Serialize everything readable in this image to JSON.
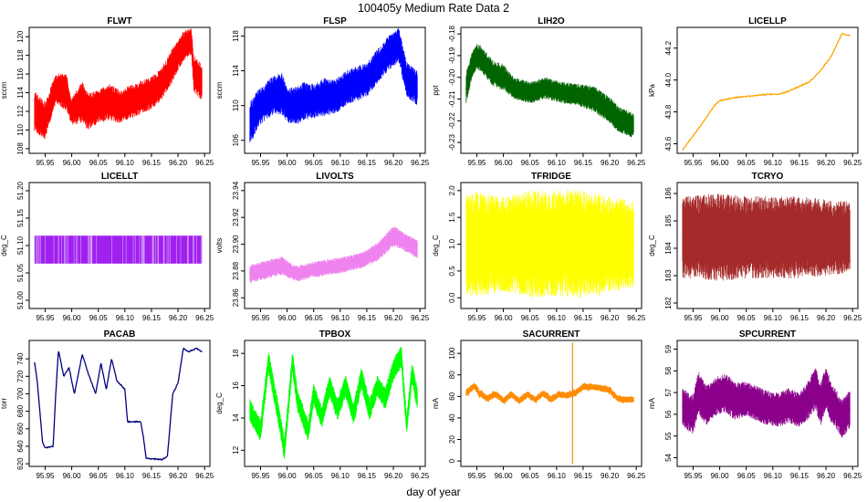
{
  "figure": {
    "title": "100405y   Medium Rate Data 2",
    "xlabel": "day of year"
  },
  "chart_data": [
    {
      "type": "line",
      "title": "FLWT",
      "ylabel": "sccm",
      "color": "#ff0000",
      "style": "noisy",
      "noise": 0.12,
      "xlim": [
        95.92,
        96.26
      ],
      "ylim": [
        107.5,
        121
      ],
      "xticks": [
        95.95,
        96.0,
        96.05,
        96.1,
        96.15,
        96.2,
        96.25
      ],
      "yticks": [
        108,
        110,
        112,
        114,
        116,
        118,
        120
      ],
      "ydec": 0,
      "x": [
        95.93,
        95.95,
        95.97,
        95.99,
        96.0,
        96.02,
        96.03,
        96.05,
        96.07,
        96.09,
        96.11,
        96.13,
        96.15,
        96.17,
        96.19,
        96.21,
        96.225,
        96.23,
        96.245
      ],
      "y": [
        112,
        111,
        114.5,
        114,
        112,
        113,
        112,
        112.5,
        113,
        112.5,
        113,
        113.5,
        114,
        115,
        117,
        119,
        119.5,
        116,
        115
      ],
      "amp": [
        2.2,
        2.0,
        1.6,
        2.0,
        1.5,
        2.2,
        2.0,
        1.8,
        2.0,
        1.8,
        1.8,
        1.8,
        1.8,
        1.8,
        1.8,
        1.6,
        1.4,
        2.0,
        2.0
      ]
    },
    {
      "type": "line",
      "title": "FLSP",
      "ylabel": "sccm",
      "color": "#0000ff",
      "style": "noisy",
      "noise": 0.15,
      "xlim": [
        95.92,
        96.26
      ],
      "ylim": [
        104.5,
        119
      ],
      "xticks": [
        95.95,
        96.0,
        96.05,
        96.1,
        96.15,
        96.2,
        96.25
      ],
      "yticks": [
        106,
        110,
        114,
        118
      ],
      "ydec": 0,
      "x": [
        95.93,
        95.95,
        95.97,
        95.99,
        96.0,
        96.02,
        96.03,
        96.05,
        96.07,
        96.09,
        96.11,
        96.13,
        96.15,
        96.17,
        96.19,
        96.21,
        96.225,
        96.245
      ],
      "y": [
        108,
        110,
        111,
        111.5,
        110,
        110,
        110.5,
        110.5,
        111,
        111,
        112,
        112.5,
        113,
        114.5,
        116,
        117,
        113,
        112
      ],
      "amp": [
        2.5,
        2.2,
        2.2,
        2.5,
        2.0,
        2.2,
        2.2,
        2.0,
        2.2,
        2.0,
        2.0,
        2.0,
        2.0,
        2.0,
        2.0,
        2.0,
        2.0,
        2.0
      ]
    },
    {
      "type": "line",
      "title": "LIH2O",
      "ylabel": "ppt",
      "color": "#006400",
      "style": "noisy",
      "noise": 0.2,
      "xlim": [
        95.92,
        96.26
      ],
      "ylim": [
        -0.235,
        -0.177
      ],
      "xticks": [
        95.95,
        96.0,
        96.05,
        96.1,
        96.15,
        96.2,
        96.25
      ],
      "yticks": [
        -0.23,
        -0.22,
        -0.21,
        -0.2,
        -0.19,
        -0.18
      ],
      "ydec": 2,
      "x": [
        95.93,
        95.94,
        95.95,
        95.96,
        95.98,
        96.0,
        96.02,
        96.05,
        96.08,
        96.11,
        96.14,
        96.17,
        96.2,
        96.22,
        96.245
      ],
      "y": [
        -0.205,
        -0.195,
        -0.19,
        -0.192,
        -0.198,
        -0.2,
        -0.205,
        -0.207,
        -0.205,
        -0.207,
        -0.208,
        -0.21,
        -0.215,
        -0.22,
        -0.222
      ],
      "amp": [
        0.008,
        0.006,
        0.006,
        0.006,
        0.006,
        0.006,
        0.005,
        0.005,
        0.005,
        0.005,
        0.005,
        0.006,
        0.006,
        0.006,
        0.006
      ]
    },
    {
      "type": "line",
      "title": "LICELLP",
      "ylabel": "kPa",
      "color": "#ffa500",
      "style": "smooth",
      "xlim": [
        95.92,
        96.26
      ],
      "ylim": [
        43.54,
        44.33
      ],
      "xticks": [
        95.95,
        96.0,
        96.05,
        96.1,
        96.15,
        96.2,
        96.25
      ],
      "yticks": [
        43.6,
        43.8,
        44.0,
        44.2
      ],
      "ydec": 1,
      "x": [
        95.93,
        95.95,
        95.97,
        95.99,
        96.0,
        96.03,
        96.06,
        96.09,
        96.11,
        96.13,
        96.15,
        96.17,
        96.19,
        96.21,
        96.22,
        96.23,
        96.245
      ],
      "y": [
        43.56,
        43.65,
        43.74,
        43.84,
        43.87,
        43.89,
        43.9,
        43.91,
        43.91,
        43.93,
        43.96,
        43.99,
        44.06,
        44.15,
        44.22,
        44.29,
        44.28
      ]
    },
    {
      "type": "line",
      "title": "LICELLT",
      "ylabel": "deg_C",
      "color": "#a020f0",
      "style": "band",
      "xlim": [
        95.92,
        96.26
      ],
      "ylim": [
        50.985,
        51.215
      ],
      "xticks": [
        95.95,
        96.0,
        96.05,
        96.1,
        96.15,
        96.2,
        96.25
      ],
      "yticks": [
        51.0,
        51.05,
        51.1,
        51.15,
        51.2
      ],
      "ydec": 2,
      "x": [
        95.93,
        96.245
      ],
      "y": [
        51.075,
        51.075
      ],
      "band": [
        51.067,
        51.118
      ]
    },
    {
      "type": "line",
      "title": "LIVOLTS",
      "ylabel": "volts",
      "color": "#ee82ee",
      "style": "noisy",
      "noise": 0.25,
      "xlim": [
        95.92,
        96.26
      ],
      "ylim": [
        23.852,
        23.946
      ],
      "xticks": [
        95.95,
        96.0,
        96.05,
        96.1,
        96.15,
        96.2,
        96.25
      ],
      "yticks": [
        23.86,
        23.88,
        23.9,
        23.92,
        23.94
      ],
      "ydec": 2,
      "x": [
        95.93,
        95.96,
        95.99,
        96.01,
        96.02,
        96.05,
        96.08,
        96.11,
        96.14,
        96.17,
        96.2,
        96.22,
        96.245
      ],
      "y": [
        23.878,
        23.881,
        23.884,
        23.879,
        23.878,
        23.881,
        23.883,
        23.885,
        23.888,
        23.894,
        23.906,
        23.902,
        23.896
      ],
      "amp": [
        0.007,
        0.007,
        0.007,
        0.006,
        0.006,
        0.006,
        0.006,
        0.006,
        0.006,
        0.007,
        0.008,
        0.007,
        0.007
      ]
    },
    {
      "type": "line",
      "title": "TFRIDGE",
      "ylabel": "deg_C",
      "color": "#ffff00",
      "style": "noisy",
      "noise": 0.3,
      "xlim": [
        95.92,
        96.26
      ],
      "ylim": [
        -0.2,
        2.15
      ],
      "xticks": [
        95.95,
        96.0,
        96.05,
        96.1,
        96.15,
        96.2,
        96.25
      ],
      "yticks": [
        0.0,
        0.5,
        1.0,
        1.5,
        2.0
      ],
      "ydec": 1,
      "x": [
        95.93,
        96.0,
        96.05,
        96.1,
        96.15,
        96.2,
        96.245
      ],
      "y": [
        1.0,
        1.0,
        1.0,
        1.0,
        1.0,
        1.0,
        1.0
      ],
      "amp": [
        1.0,
        0.9,
        1.0,
        1.0,
        1.0,
        0.9,
        0.8
      ]
    },
    {
      "type": "line",
      "title": "TCRYO",
      "ylabel": "deg_C",
      "color": "#a52a2a",
      "style": "noisy",
      "noise": 0.3,
      "xlim": [
        95.92,
        96.26
      ],
      "ylim": [
        181.8,
        186.4
      ],
      "xticks": [
        95.95,
        96.0,
        96.05,
        96.1,
        96.15,
        96.2,
        96.25
      ],
      "yticks": [
        182,
        183,
        184,
        185,
        186
      ],
      "ydec": 0,
      "x": [
        95.93,
        96.0,
        96.05,
        96.1,
        96.15,
        96.2,
        96.245
      ],
      "y": [
        184.4,
        184.4,
        184.4,
        184.4,
        184.4,
        184.4,
        184.4
      ],
      "amp": [
        1.5,
        1.6,
        1.5,
        1.5,
        1.5,
        1.4,
        1.3
      ]
    },
    {
      "type": "line",
      "title": "PACAB",
      "ylabel": "torr",
      "color": "#000080",
      "style": "smooth",
      "xlim": [
        95.92,
        96.26
      ],
      "ylim": [
        617,
        761
      ],
      "xticks": [
        95.95,
        96.0,
        96.05,
        96.1,
        96.15,
        96.2,
        96.25
      ],
      "yticks": [
        620,
        640,
        660,
        680,
        700,
        720,
        740
      ],
      "ydec": 0,
      "x": [
        95.93,
        95.935,
        95.94,
        95.945,
        95.95,
        95.965,
        95.97,
        95.975,
        95.985,
        95.995,
        96.005,
        96.02,
        96.03,
        96.045,
        96.055,
        96.065,
        96.075,
        96.085,
        96.1,
        96.105,
        96.13,
        96.135,
        96.14,
        96.17,
        96.18,
        96.19,
        96.2,
        96.21,
        96.22,
        96.235,
        96.245
      ],
      "y": [
        736,
        715,
        680,
        645,
        638,
        640,
        700,
        750,
        720,
        730,
        700,
        745,
        725,
        700,
        735,
        705,
        740,
        715,
        705,
        668,
        668,
        650,
        626,
        625,
        628,
        700,
        712,
        752,
        748,
        752,
        748
      ]
    },
    {
      "type": "line",
      "title": "TPBOX",
      "ylabel": "deg_C",
      "color": "#00ff00",
      "style": "noisy",
      "noise": 0.12,
      "xlim": [
        95.92,
        96.26
      ],
      "ylim": [
        11,
        18.8
      ],
      "xticks": [
        95.95,
        96.0,
        96.05,
        96.1,
        96.15,
        96.2,
        96.25
      ],
      "yticks": [
        12,
        14,
        16,
        18
      ],
      "ydec": 0,
      "x": [
        95.93,
        95.95,
        95.965,
        95.985,
        95.995,
        96.01,
        96.02,
        96.04,
        96.05,
        96.065,
        96.08,
        96.095,
        96.11,
        96.125,
        96.14,
        96.155,
        96.17,
        96.185,
        96.2,
        96.215,
        96.225,
        96.235,
        96.245
      ],
      "y": [
        14.5,
        13.2,
        17.5,
        14,
        12,
        17.5,
        15,
        13.2,
        15.5,
        14,
        16,
        14.5,
        16,
        14.2,
        16.5,
        14.5,
        16,
        15.2,
        17,
        17.8,
        13.5,
        16.8,
        15.2
      ],
      "amp": [
        0.7,
        0.7,
        0.7,
        0.7,
        0.7,
        0.7,
        0.7,
        0.7,
        0.7,
        0.7,
        0.7,
        0.7,
        0.7,
        0.7,
        0.7,
        0.7,
        0.7,
        0.7,
        0.7,
        0.7,
        0.7,
        0.7,
        0.7
      ]
    },
    {
      "type": "line",
      "title": "SACURRENT",
      "ylabel": "mA",
      "color": "#ff8c00",
      "style": "noisy",
      "noise": 0.2,
      "xlim": [
        95.92,
        96.26
      ],
      "ylim": [
        -5,
        112
      ],
      "xticks": [
        95.95,
        96.0,
        96.05,
        96.1,
        96.15,
        96.2,
        96.25
      ],
      "yticks": [
        0,
        20,
        40,
        60,
        80,
        100
      ],
      "ydec": 0,
      "x": [
        95.93,
        95.945,
        95.955,
        95.97,
        95.985,
        96.0,
        96.015,
        96.03,
        96.045,
        96.06,
        96.075,
        96.09,
        96.105,
        96.12,
        96.135,
        96.15,
        96.165,
        96.18,
        96.2,
        96.215,
        96.225,
        96.245
      ],
      "y": [
        63,
        70,
        63,
        58,
        62,
        56,
        62,
        56,
        62,
        57,
        63,
        57,
        62,
        61,
        63,
        69,
        69,
        68,
        66,
        58,
        57,
        57
      ],
      "amp": [
        3,
        3,
        3,
        3,
        3,
        3,
        3,
        3,
        3,
        3,
        3,
        3,
        3,
        3,
        3,
        3,
        3,
        3,
        3,
        3,
        3,
        3
      ],
      "spike": {
        "x": 96.13,
        "ymin": -3,
        "ymax": 110
      }
    },
    {
      "type": "line",
      "title": "SPCURRENT",
      "ylabel": "mA",
      "color": "#8b008b",
      "style": "noisy",
      "noise": 0.18,
      "xlim": [
        95.92,
        96.26
      ],
      "ylim": [
        53.6,
        59.4
      ],
      "xticks": [
        95.95,
        96.0,
        96.05,
        96.1,
        96.15,
        96.2,
        96.25
      ],
      "yticks": [
        54,
        55,
        56,
        57,
        58,
        59
      ],
      "ydec": 0,
      "x": [
        95.93,
        95.95,
        95.96,
        95.975,
        95.99,
        96.01,
        96.03,
        96.05,
        96.07,
        96.09,
        96.11,
        96.13,
        96.15,
        96.165,
        96.18,
        96.19,
        96.2,
        96.21,
        96.22,
        96.23,
        96.245
      ],
      "y": [
        56.3,
        56.0,
        57.0,
        56.4,
        56.8,
        57.0,
        56.6,
        56.7,
        56.5,
        56.3,
        56.2,
        56.4,
        56.2,
        56.6,
        57.2,
        56.5,
        57.3,
        56.5,
        56.2,
        55.8,
        56.2
      ],
      "amp": [
        0.9,
        0.9,
        1.0,
        0.9,
        0.9,
        0.9,
        0.9,
        0.8,
        0.8,
        0.8,
        0.8,
        0.8,
        0.8,
        0.9,
        1.0,
        1.0,
        1.0,
        0.9,
        0.9,
        0.9,
        0.9
      ]
    }
  ]
}
